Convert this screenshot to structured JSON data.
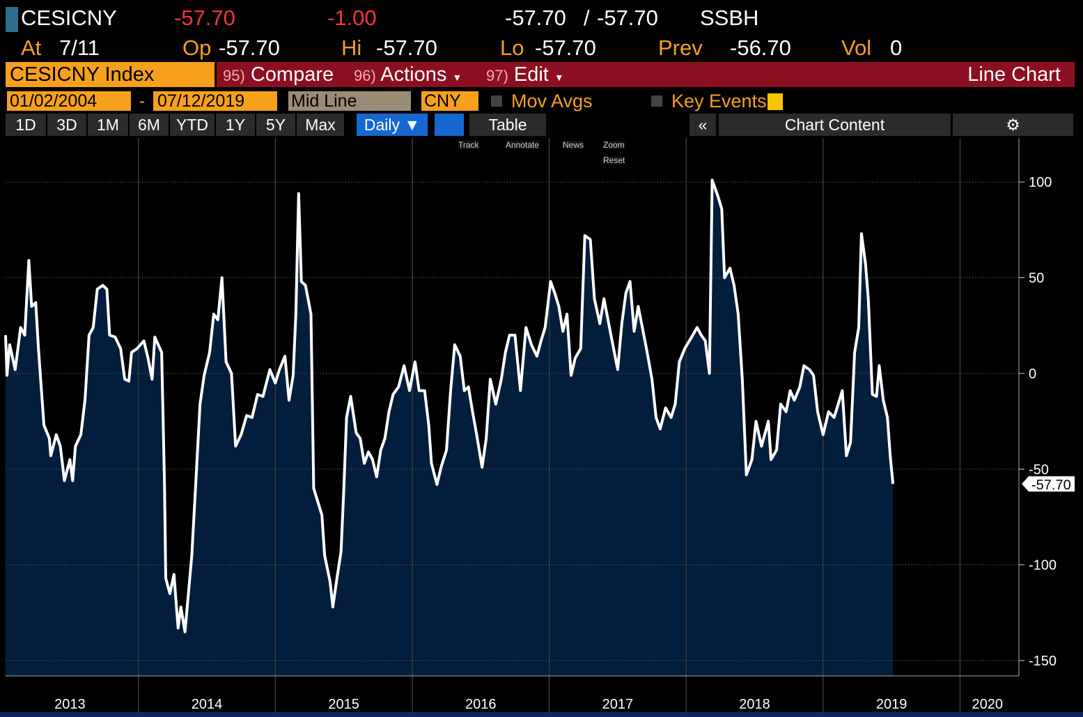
{
  "header": {
    "ticker": "CESICNY",
    "last": "-57.70",
    "change": "-1.00",
    "bid": "-57.70",
    "bid_ask_sep": "/",
    "ask": "-57.70",
    "source": "SSBH",
    "at_label": "At",
    "at": "7/11",
    "op_label": "Op",
    "op": "-57.70",
    "hi_label": "Hi",
    "hi": "-57.70",
    "lo_label": "Lo",
    "lo": "-57.70",
    "prev_label": "Prev",
    "prev": "-56.70",
    "vol_label": "Vol",
    "vol": "0"
  },
  "toolbar": {
    "security": "CESICNY Index",
    "compare_num": "95)",
    "compare": "Compare",
    "actions_num": "96)",
    "actions": "Actions",
    "edit_num": "97)",
    "edit": "Edit",
    "chart_type": "Line Chart"
  },
  "controls": {
    "start_date": "01/02/2004",
    "date_sep": "-",
    "end_date": "07/12/2019",
    "line_mode": "Mid Line",
    "currency": "CNY",
    "mov_avgs": "Mov Avgs",
    "key_events": "Key Events"
  },
  "periods": [
    "1D",
    "3D",
    "1M",
    "6M",
    "YTD",
    "1Y",
    "5Y",
    "Max"
  ],
  "frequency": "Daily ▼",
  "table": "Table",
  "chart_content": "Chart Content",
  "chart_tools": [
    "Track",
    "Annotate",
    "News",
    "Zoom",
    "Reset"
  ],
  "chart_data": {
    "type": "line",
    "color": "#ffffff",
    "fill": "#031d3c",
    "grid": true,
    "x": [
      2013.03,
      2013.04,
      2013.06,
      2013.1,
      2013.14,
      2013.17,
      2013.2,
      2013.22,
      2013.25,
      2013.27,
      2013.31,
      2013.35,
      2013.36,
      2013.4,
      2013.43,
      2013.46,
      2013.5,
      2013.52,
      2013.54,
      2013.58,
      2013.61,
      2013.64,
      2013.67,
      2013.7,
      2013.74,
      2013.77,
      2013.79,
      2013.83,
      2013.87,
      2013.9,
      2013.93,
      2013.95,
      2013.99,
      2014.04,
      2014.07,
      2014.1,
      2014.12,
      2014.17,
      2014.19,
      2014.2,
      2014.23,
      2014.26,
      2014.29,
      2014.31,
      2014.34,
      2014.37,
      2014.39,
      2014.42,
      2014.45,
      2014.48,
      2014.52,
      2014.55,
      2014.58,
      2014.61,
      2014.64,
      2014.68,
      2014.71,
      2014.75,
      2014.79,
      2014.83,
      2014.87,
      2014.91,
      2014.96,
      2015.0,
      2015.03,
      2015.07,
      2015.1,
      2015.13,
      2015.15,
      2015.17,
      2015.19,
      2015.22,
      2015.26,
      2015.28,
      2015.31,
      2015.34,
      2015.36,
      2015.4,
      2015.42,
      2015.45,
      2015.48,
      2015.5,
      2015.52,
      2015.55,
      2015.59,
      2015.62,
      2015.65,
      2015.68,
      2015.71,
      2015.74,
      2015.77,
      2015.8,
      2015.83,
      2015.86,
      2015.9,
      2015.94,
      2015.98,
      2016.02,
      2016.05,
      2016.09,
      2016.12,
      2016.14,
      2016.18,
      2016.21,
      2016.25,
      2016.28,
      2016.31,
      2016.35,
      2016.38,
      2016.41,
      2016.44,
      2016.47,
      2016.51,
      2016.54,
      2016.57,
      2016.61,
      2016.65,
      2016.68,
      2016.71,
      2016.75,
      2016.79,
      2016.83,
      2016.87,
      2016.91,
      2016.94,
      2016.97,
      2017.01,
      2017.04,
      2017.07,
      2017.1,
      2017.13,
      2017.16,
      2017.19,
      2017.23,
      2017.26,
      2017.3,
      2017.33,
      2017.37,
      2017.4,
      2017.44,
      2017.47,
      2017.5,
      2017.53,
      2017.56,
      2017.59,
      2017.62,
      2017.65,
      2017.68,
      2017.71,
      2017.75,
      2017.78,
      2017.81,
      2017.85,
      2017.89,
      2017.92,
      2017.95,
      2017.99,
      2018.04,
      2018.08,
      2018.11,
      2018.14,
      2018.17,
      2018.19,
      2018.23,
      2018.26,
      2018.28,
      2018.32,
      2018.35,
      2018.38,
      2018.41,
      2018.44,
      2018.48,
      2018.51,
      2018.55,
      2018.6,
      2018.62,
      2018.66,
      2018.69,
      2018.73,
      2018.76,
      2018.79,
      2018.83,
      2018.86,
      2018.9,
      2018.93,
      2018.96,
      2019.0,
      2019.04,
      2019.08,
      2019.11,
      2019.14,
      2019.17,
      2019.2,
      2019.23,
      2019.26,
      2019.28,
      2019.31,
      2019.33,
      2019.36,
      2019.39,
      2019.41,
      2019.44,
      2019.47,
      2019.49,
      2019.51
    ],
    "values": [
      20,
      -1,
      15,
      2,
      24,
      20,
      59,
      35,
      37,
      13,
      -27,
      -34,
      -43,
      -32,
      -38,
      -56,
      -45,
      -56,
      -38,
      -32,
      -14,
      20,
      24,
      44,
      46,
      44,
      20,
      19,
      13,
      -3,
      -4,
      11,
      13,
      17,
      8,
      -3,
      19,
      11,
      -56,
      -107,
      -115,
      -105,
      -133,
      -122,
      -135,
      -111,
      -95,
      -56,
      -16,
      -1,
      11,
      31,
      28,
      50,
      6,
      0,
      -38,
      -32,
      -22,
      -23,
      -11,
      -12,
      2,
      -5,
      2,
      9,
      -14,
      -1,
      31,
      94,
      48,
      46,
      31,
      -60,
      -67,
      -74,
      -95,
      -109,
      -122,
      -107,
      -93,
      -60,
      -23,
      -12,
      -31,
      -34,
      -47,
      -41,
      -45,
      -54,
      -40,
      -34,
      -20,
      -11,
      -7,
      4,
      -9,
      6,
      -9,
      -9,
      -27,
      -47,
      -58,
      -49,
      -40,
      -9,
      15,
      9,
      -9,
      -7,
      -20,
      -32,
      -49,
      -34,
      -3,
      -16,
      -3,
      11,
      20,
      20,
      -9,
      24,
      15,
      9,
      17,
      24,
      48,
      42,
      35,
      22,
      31,
      -1,
      8,
      13,
      72,
      70,
      39,
      26,
      39,
      24,
      13,
      2,
      26,
      42,
      48,
      22,
      35,
      24,
      13,
      -3,
      -23,
      -29,
      -18,
      -23,
      -16,
      6,
      13,
      19,
      24,
      20,
      17,
      0,
      101,
      93,
      86,
      50,
      55,
      46,
      31,
      -3,
      -53,
      -45,
      -25,
      -38,
      -25,
      -45,
      -40,
      -16,
      -20,
      -9,
      -14,
      -7,
      4,
      2,
      -1,
      -20,
      -32,
      -20,
      -23,
      -16,
      -9,
      -43,
      -36,
      11,
      24,
      73,
      57,
      39,
      -11,
      -12,
      4,
      -14,
      -23,
      -43,
      -57.7
    ],
    "last_label": "-57.70",
    "xlim": [
      2013.03,
      2020.43
    ],
    "xgrid": [
      2014,
      2015,
      2016,
      2017,
      2018,
      2019,
      2020
    ],
    "xticks": [
      {
        "value": 2013.5,
        "label": "2013"
      },
      {
        "value": 2014.5,
        "label": "2014"
      },
      {
        "value": 2015.5,
        "label": "2015"
      },
      {
        "value": 2016.5,
        "label": "2016"
      },
      {
        "value": 2017.5,
        "label": "2017"
      },
      {
        "value": 2018.5,
        "label": "2018"
      },
      {
        "value": 2019.5,
        "label": "2019"
      },
      {
        "value": 2020.2,
        "label": "2020"
      }
    ],
    "ylim": [
      -158,
      123
    ],
    "yticks": [
      -150,
      -100,
      -50,
      0,
      50,
      100
    ]
  }
}
